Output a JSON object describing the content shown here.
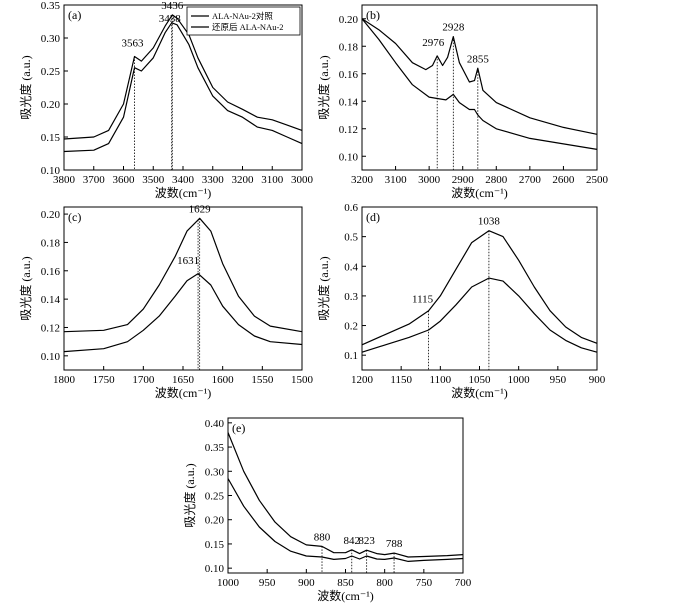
{
  "chart_data": [
    {
      "type": "line",
      "panel": "(a)",
      "xlabel": "波数(cm⁻¹)",
      "ylabel": "吸光度 (a.u.)",
      "xlim": [
        3800,
        3000
      ],
      "ylim": [
        0.1,
        0.35
      ],
      "xticks": [
        3800,
        3700,
        3600,
        3500,
        3400,
        3300,
        3200,
        3100,
        3000
      ],
      "yticks": [
        0.1,
        0.15,
        0.2,
        0.25,
        0.3,
        0.35
      ],
      "legend": {
        "position": "top-right",
        "entries": [
          "ALA-NAu-2对照",
          "还原后 ALA-NAu-2"
        ]
      },
      "peaks": [
        {
          "x": 3563,
          "label": "3563"
        },
        {
          "x": 3438,
          "label": "3438"
        },
        {
          "x": 3436,
          "label": "3436"
        }
      ],
      "series": [
        {
          "name": "ALA-NAu-2对照",
          "points": [
            [
              3800,
              0.147
            ],
            [
              3700,
              0.15
            ],
            [
              3650,
              0.16
            ],
            [
              3600,
              0.2
            ],
            [
              3563,
              0.272
            ],
            [
              3540,
              0.265
            ],
            [
              3500,
              0.285
            ],
            [
              3460,
              0.318
            ],
            [
              3436,
              0.335
            ],
            [
              3420,
              0.33
            ],
            [
              3380,
              0.305
            ],
            [
              3350,
              0.27
            ],
            [
              3300,
              0.225
            ],
            [
              3250,
              0.203
            ],
            [
              3200,
              0.192
            ],
            [
              3150,
              0.18
            ],
            [
              3100,
              0.176
            ],
            [
              3050,
              0.168
            ],
            [
              3000,
              0.16
            ]
          ]
        },
        {
          "name": "还原后 ALA-NAu-2",
          "points": [
            [
              3800,
              0.128
            ],
            [
              3700,
              0.13
            ],
            [
              3650,
              0.14
            ],
            [
              3600,
              0.18
            ],
            [
              3563,
              0.255
            ],
            [
              3540,
              0.25
            ],
            [
              3500,
              0.27
            ],
            [
              3460,
              0.308
            ],
            [
              3438,
              0.323
            ],
            [
              3420,
              0.32
            ],
            [
              3380,
              0.29
            ],
            [
              3350,
              0.255
            ],
            [
              3300,
              0.212
            ],
            [
              3250,
              0.19
            ],
            [
              3200,
              0.18
            ],
            [
              3150,
              0.165
            ],
            [
              3100,
              0.16
            ],
            [
              3050,
              0.15
            ],
            [
              3000,
              0.14
            ]
          ]
        }
      ]
    },
    {
      "type": "line",
      "panel": "(b)",
      "xlabel": "波数(cm⁻¹)",
      "ylabel": "吸光度 (a.u.)",
      "xlim": [
        3200,
        2500
      ],
      "ylim": [
        0.09,
        0.21
      ],
      "xticks": [
        3200,
        3100,
        3000,
        2900,
        2800,
        2700,
        2600,
        2500
      ],
      "yticks": [
        0.1,
        0.12,
        0.14,
        0.16,
        0.18,
        0.2
      ],
      "peaks": [
        {
          "x": 2976,
          "label": "2976"
        },
        {
          "x": 2928,
          "label": "2928"
        },
        {
          "x": 2855,
          "label": "2855"
        }
      ],
      "series": [
        {
          "name": "ALA-NAu-2对照",
          "points": [
            [
              3200,
              0.2
            ],
            [
              3150,
              0.192
            ],
            [
              3100,
              0.182
            ],
            [
              3050,
              0.168
            ],
            [
              3010,
              0.163
            ],
            [
              2990,
              0.166
            ],
            [
              2976,
              0.173
            ],
            [
              2960,
              0.166
            ],
            [
              2945,
              0.172
            ],
            [
              2928,
              0.187
            ],
            [
              2910,
              0.168
            ],
            [
              2880,
              0.154
            ],
            [
              2865,
              0.155
            ],
            [
              2855,
              0.164
            ],
            [
              2840,
              0.148
            ],
            [
              2800,
              0.139
            ],
            [
              2700,
              0.128
            ],
            [
              2600,
              0.121
            ],
            [
              2500,
              0.116
            ]
          ]
        },
        {
          "name": "还原后 ALA-NAu-2",
          "points": [
            [
              3200,
              0.2
            ],
            [
              3150,
              0.185
            ],
            [
              3100,
              0.168
            ],
            [
              3050,
              0.152
            ],
            [
              3000,
              0.143
            ],
            [
              2976,
              0.142
            ],
            [
              2950,
              0.141
            ],
            [
              2928,
              0.145
            ],
            [
              2910,
              0.139
            ],
            [
              2880,
              0.134
            ],
            [
              2865,
              0.134
            ],
            [
              2855,
              0.13
            ],
            [
              2840,
              0.126
            ],
            [
              2800,
              0.12
            ],
            [
              2700,
              0.113
            ],
            [
              2600,
              0.109
            ],
            [
              2500,
              0.105
            ]
          ]
        }
      ]
    },
    {
      "type": "line",
      "panel": "(c)",
      "xlabel": "波数(cm⁻¹)",
      "ylabel": "吸光度 (a.u.)",
      "xlim": [
        1800,
        1500
      ],
      "ylim": [
        0.09,
        0.205
      ],
      "xticks": [
        1800,
        1750,
        1700,
        1650,
        1600,
        1550,
        1500
      ],
      "yticks": [
        0.1,
        0.12,
        0.14,
        0.16,
        0.18,
        0.2
      ],
      "peaks": [
        {
          "x": 1629,
          "label": "1629"
        },
        {
          "x": 1631,
          "label": "1631"
        }
      ],
      "series": [
        {
          "name": "ALA-NAu-2对照",
          "points": [
            [
              1800,
              0.117
            ],
            [
              1750,
              0.118
            ],
            [
              1720,
              0.122
            ],
            [
              1700,
              0.133
            ],
            [
              1680,
              0.15
            ],
            [
              1660,
              0.17
            ],
            [
              1645,
              0.188
            ],
            [
              1629,
              0.197
            ],
            [
              1615,
              0.188
            ],
            [
              1600,
              0.165
            ],
            [
              1580,
              0.142
            ],
            [
              1560,
              0.128
            ],
            [
              1540,
              0.121
            ],
            [
              1500,
              0.117
            ]
          ]
        },
        {
          "name": "还原后 ALA-NAu-2",
          "points": [
            [
              1800,
              0.103
            ],
            [
              1750,
              0.105
            ],
            [
              1720,
              0.11
            ],
            [
              1700,
              0.118
            ],
            [
              1680,
              0.128
            ],
            [
              1660,
              0.142
            ],
            [
              1645,
              0.153
            ],
            [
              1631,
              0.158
            ],
            [
              1615,
              0.15
            ],
            [
              1600,
              0.135
            ],
            [
              1580,
              0.122
            ],
            [
              1560,
              0.114
            ],
            [
              1540,
              0.11
            ],
            [
              1500,
              0.108
            ]
          ]
        }
      ]
    },
    {
      "type": "line",
      "panel": "(d)",
      "xlabel": "波数(cm⁻¹)",
      "ylabel": "吸光度 (a.u.)",
      "xlim": [
        1200,
        900
      ],
      "ylim": [
        0.05,
        0.6
      ],
      "xticks": [
        1200,
        1150,
        1100,
        1050,
        1000,
        950,
        900
      ],
      "yticks": [
        0.1,
        0.2,
        0.3,
        0.4,
        0.5,
        0.6
      ],
      "peaks": [
        {
          "x": 1115,
          "label": "1115"
        },
        {
          "x": 1038,
          "label": "1038"
        }
      ],
      "series": [
        {
          "name": "ALA-NAu-2对照",
          "points": [
            [
              1200,
              0.135
            ],
            [
              1170,
              0.17
            ],
            [
              1140,
              0.205
            ],
            [
              1115,
              0.25
            ],
            [
              1100,
              0.3
            ],
            [
              1080,
              0.39
            ],
            [
              1060,
              0.48
            ],
            [
              1038,
              0.52
            ],
            [
              1020,
              0.5
            ],
            [
              1000,
              0.42
            ],
            [
              980,
              0.33
            ],
            [
              960,
              0.25
            ],
            [
              940,
              0.195
            ],
            [
              920,
              0.16
            ],
            [
              900,
              0.14
            ]
          ]
        },
        {
          "name": "还原后 ALA-NAu-2",
          "points": [
            [
              1200,
              0.11
            ],
            [
              1170,
              0.135
            ],
            [
              1140,
              0.16
            ],
            [
              1115,
              0.185
            ],
            [
              1100,
              0.215
            ],
            [
              1080,
              0.27
            ],
            [
              1060,
              0.33
            ],
            [
              1038,
              0.36
            ],
            [
              1020,
              0.35
            ],
            [
              1000,
              0.3
            ],
            [
              980,
              0.24
            ],
            [
              960,
              0.185
            ],
            [
              940,
              0.15
            ],
            [
              920,
              0.125
            ],
            [
              900,
              0.11
            ]
          ]
        }
      ]
    },
    {
      "type": "line",
      "panel": "(e)",
      "xlabel": "波数(cm⁻¹)",
      "ylabel": "吸光度 (a.u.)",
      "xlim": [
        1000,
        700
      ],
      "ylim": [
        0.09,
        0.41
      ],
      "xticks": [
        1000,
        950,
        900,
        850,
        800,
        750,
        700
      ],
      "yticks": [
        0.1,
        0.15,
        0.2,
        0.25,
        0.3,
        0.35,
        0.4
      ],
      "peaks": [
        {
          "x": 880,
          "label": "880"
        },
        {
          "x": 842,
          "label": "842"
        },
        {
          "x": 823,
          "label": "823"
        },
        {
          "x": 788,
          "label": "788"
        }
      ],
      "series": [
        {
          "name": "ALA-NAu-2对照",
          "points": [
            [
              1000,
              0.38
            ],
            [
              980,
              0.3
            ],
            [
              960,
              0.24
            ],
            [
              940,
              0.195
            ],
            [
              920,
              0.165
            ],
            [
              900,
              0.148
            ],
            [
              880,
              0.145
            ],
            [
              865,
              0.132
            ],
            [
              850,
              0.132
            ],
            [
              842,
              0.138
            ],
            [
              832,
              0.13
            ],
            [
              823,
              0.137
            ],
            [
              810,
              0.13
            ],
            [
              800,
              0.128
            ],
            [
              788,
              0.131
            ],
            [
              770,
              0.123
            ],
            [
              750,
              0.124
            ],
            [
              720,
              0.126
            ],
            [
              700,
              0.128
            ]
          ]
        },
        {
          "name": "还原后 ALA-NAu-2",
          "points": [
            [
              1000,
              0.285
            ],
            [
              980,
              0.228
            ],
            [
              960,
              0.185
            ],
            [
              940,
              0.155
            ],
            [
              920,
              0.135
            ],
            [
              900,
              0.125
            ],
            [
              880,
              0.123
            ],
            [
              865,
              0.118
            ],
            [
              850,
              0.12
            ],
            [
              842,
              0.125
            ],
            [
              832,
              0.119
            ],
            [
              823,
              0.125
            ],
            [
              810,
              0.119
            ],
            [
              800,
              0.118
            ],
            [
              788,
              0.121
            ],
            [
              770,
              0.114
            ],
            [
              750,
              0.116
            ],
            [
              720,
              0.118
            ],
            [
              700,
              0.12
            ]
          ]
        }
      ]
    }
  ]
}
